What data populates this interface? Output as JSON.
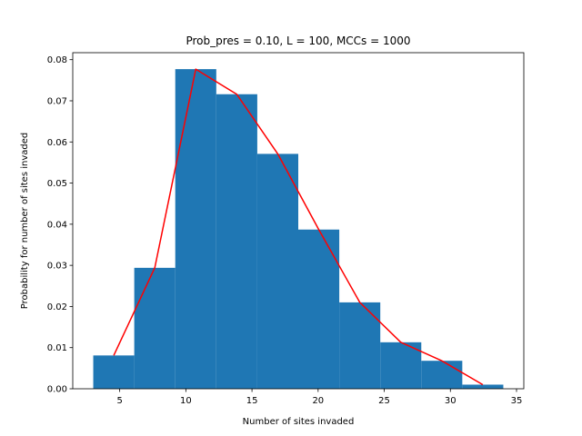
{
  "chart_data": {
    "type": "bar",
    "title": "Prob_pres = 0.10, L = 100, MCCs = 1000",
    "xlabel": "Number of sites invaded",
    "ylabel": "Probability for number of sites invaded",
    "xlim": [
      1.45,
      35.55
    ],
    "ylim": [
      0,
      0.0817
    ],
    "xticks": [
      5,
      10,
      15,
      20,
      25,
      30,
      35
    ],
    "yticks": [
      0.0,
      0.01,
      0.02,
      0.03,
      0.04,
      0.05,
      0.06,
      0.07,
      0.08
    ],
    "grid": false,
    "bar_color": "#1f77b4",
    "line_color": "#ff0000",
    "bins": [
      {
        "left": 3.0,
        "right": 6.1,
        "value": 0.0081
      },
      {
        "left": 6.1,
        "right": 9.2,
        "value": 0.0294
      },
      {
        "left": 9.2,
        "right": 12.3,
        "value": 0.0777
      },
      {
        "left": 12.3,
        "right": 15.4,
        "value": 0.0716
      },
      {
        "left": 15.4,
        "right": 18.5,
        "value": 0.0571
      },
      {
        "left": 18.5,
        "right": 21.6,
        "value": 0.0387
      },
      {
        "left": 21.6,
        "right": 24.7,
        "value": 0.021
      },
      {
        "left": 24.7,
        "right": 27.8,
        "value": 0.0113
      },
      {
        "left": 27.8,
        "right": 30.9,
        "value": 0.0068
      },
      {
        "left": 30.9,
        "right": 34.0,
        "value": 0.001
      }
    ],
    "series": [
      {
        "type": "line",
        "x": [
          4.55,
          7.65,
          10.75,
          13.85,
          16.95,
          20.05,
          23.15,
          26.25,
          29.35,
          32.45
        ],
        "y": [
          0.0081,
          0.0294,
          0.0777,
          0.0716,
          0.0571,
          0.0387,
          0.021,
          0.0113,
          0.0068,
          0.001
        ]
      }
    ]
  }
}
